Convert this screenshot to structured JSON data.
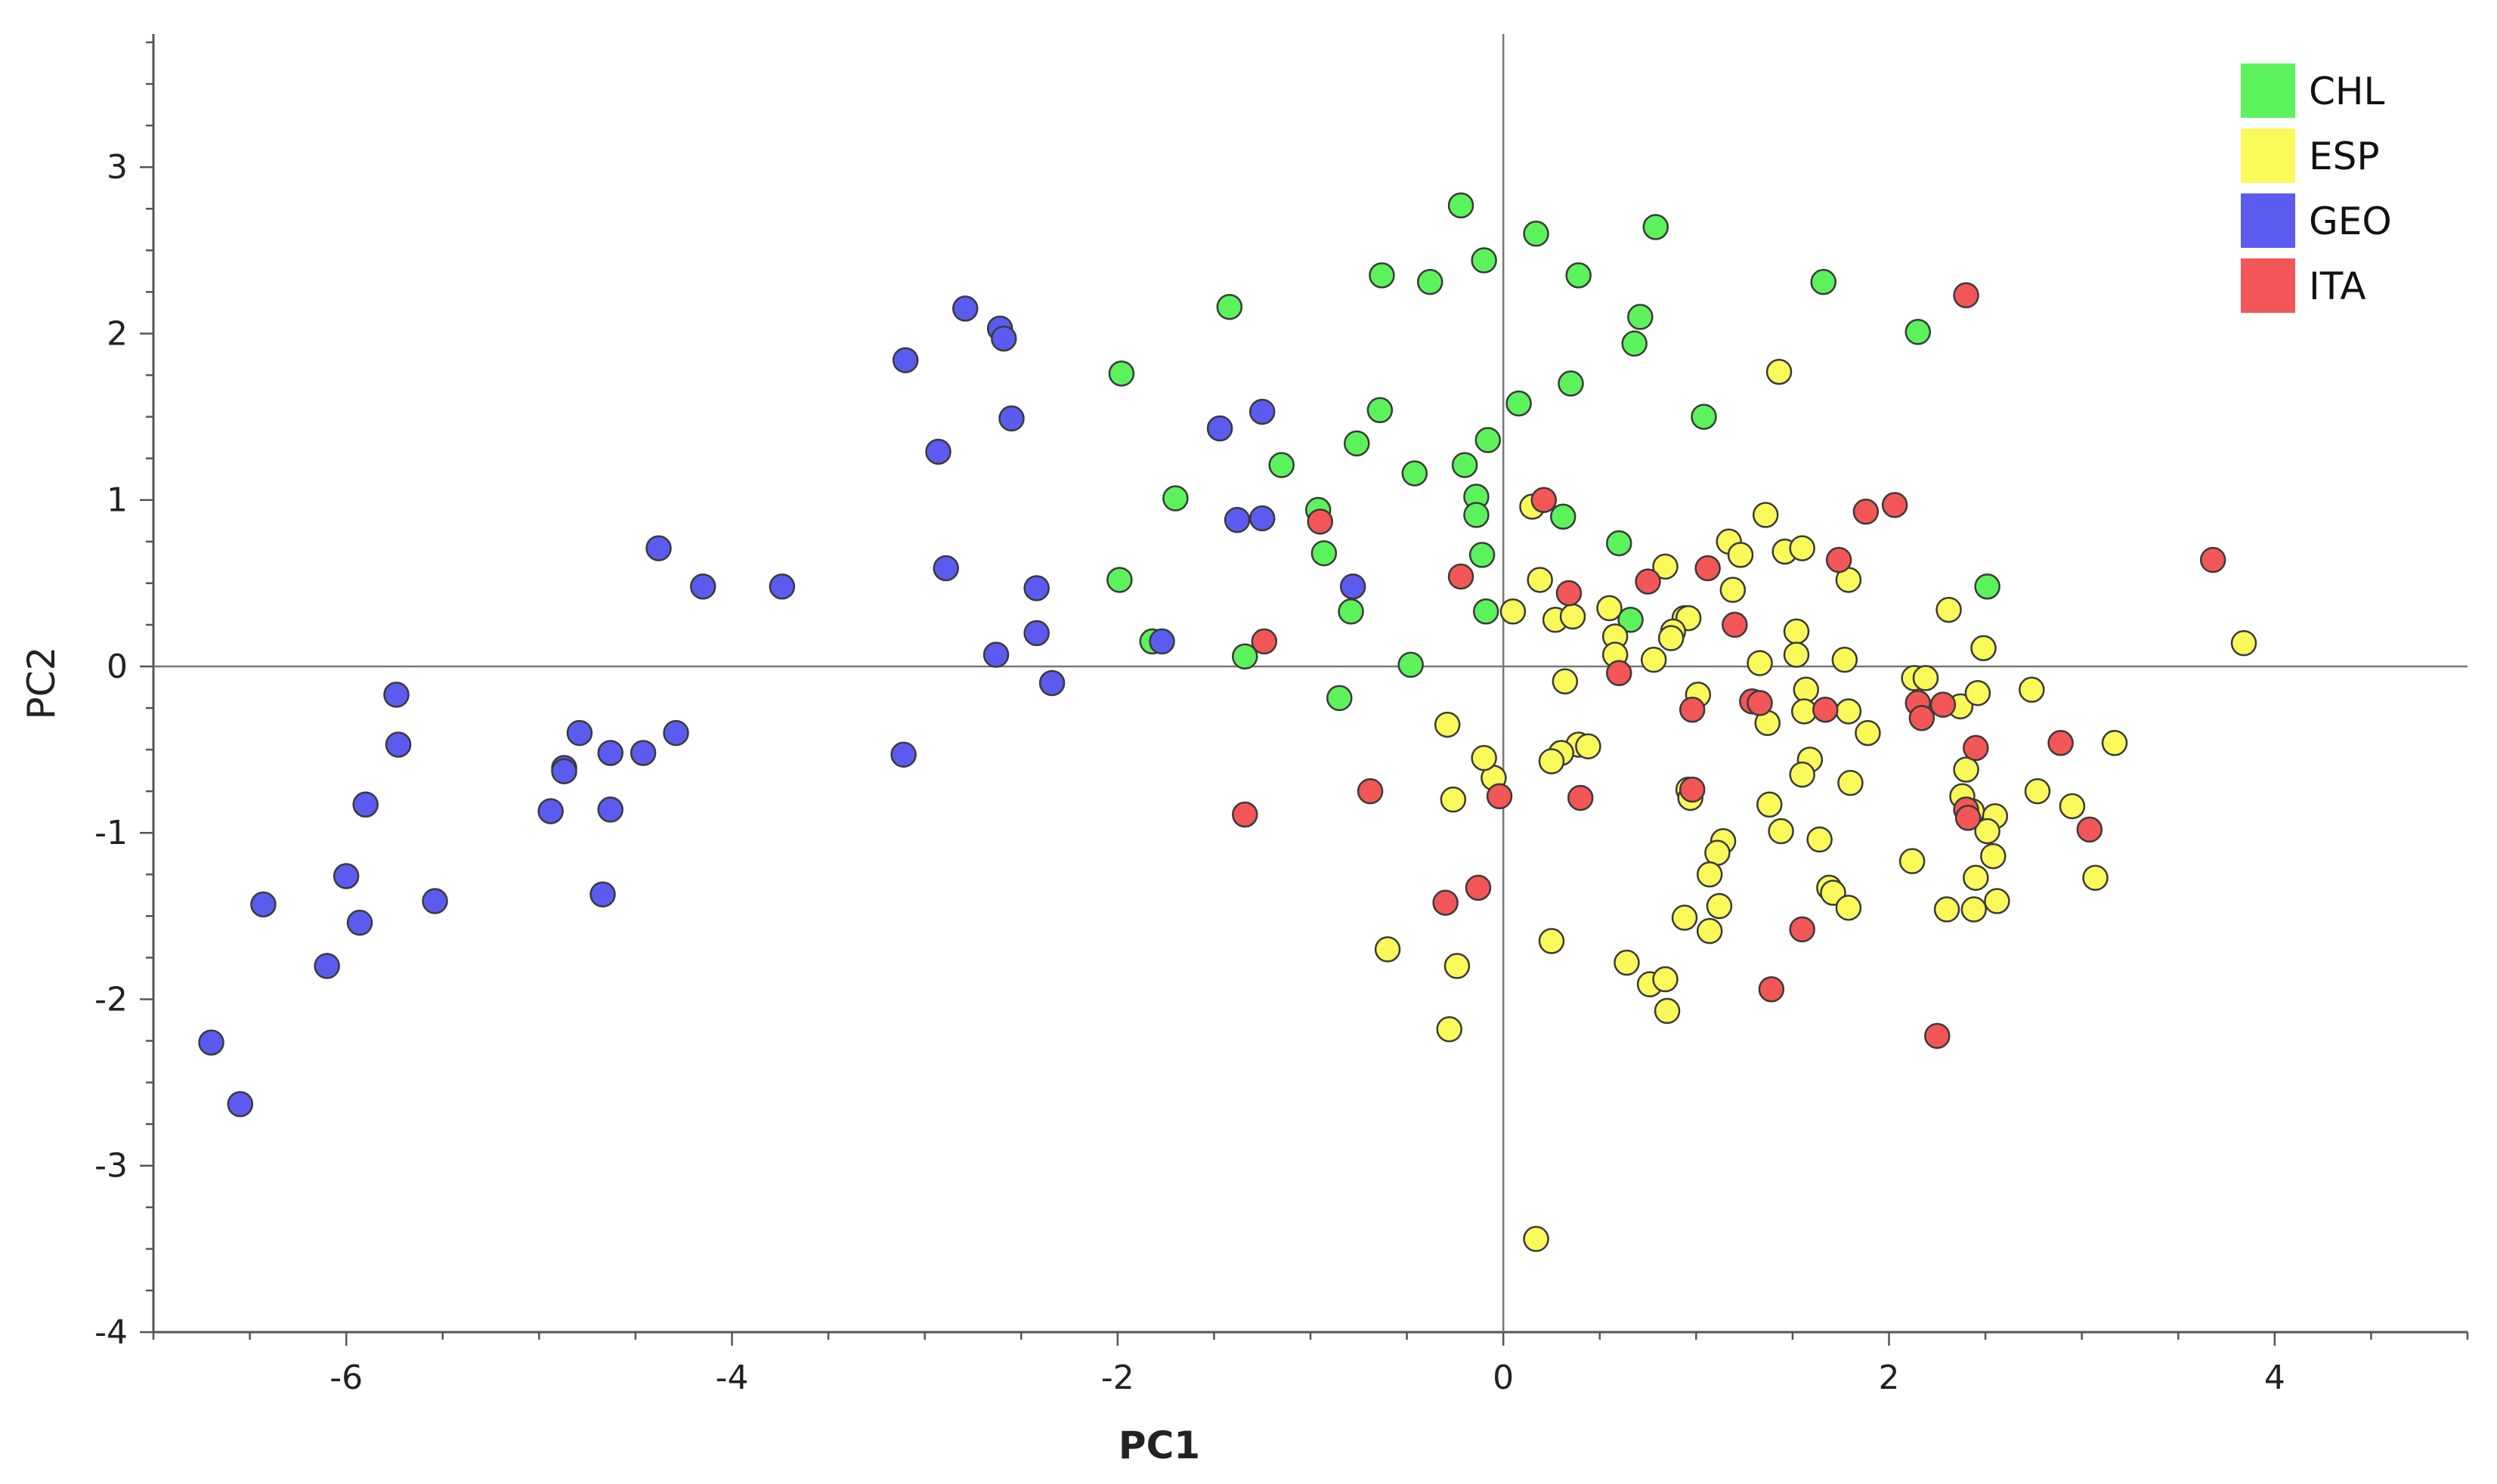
{
  "chart_data": {
    "type": "scatter",
    "title": "",
    "xlabel": "PC1",
    "ylabel": "PC2",
    "xlim": [
      -7,
      5
    ],
    "ylim": [
      -4,
      3.8
    ],
    "xticks": [
      -6,
      -4,
      -2,
      0,
      2,
      4
    ],
    "yticks": [
      -4,
      -3,
      -2,
      -1,
      0,
      1,
      2,
      3
    ],
    "zero_lines": true,
    "grid": false,
    "legend_position": "top-right",
    "series": [
      {
        "name": "CHL",
        "color": "#5cf25c",
        "points": [
          [
            -0.22,
            2.77
          ],
          [
            -0.1,
            2.44
          ],
          [
            0.17,
            2.6
          ],
          [
            0.79,
            2.64
          ],
          [
            -0.63,
            2.35
          ],
          [
            -0.38,
            2.31
          ],
          [
            0.39,
            2.35
          ],
          [
            1.66,
            2.31
          ],
          [
            -1.42,
            2.16
          ],
          [
            0.71,
            2.1
          ],
          [
            0.68,
            1.94
          ],
          [
            2.15,
            2.01
          ],
          [
            -1.98,
            1.76
          ],
          [
            0.35,
            1.7
          ],
          [
            0.08,
            1.58
          ],
          [
            -0.64,
            1.54
          ],
          [
            1.04,
            1.5
          ],
          [
            -0.08,
            1.36
          ],
          [
            -0.76,
            1.34
          ],
          [
            -1.15,
            1.21
          ],
          [
            -0.46,
            1.16
          ],
          [
            -0.2,
            1.21
          ],
          [
            -0.14,
            1.02
          ],
          [
            -1.7,
            1.01
          ],
          [
            -0.96,
            0.94
          ],
          [
            -0.14,
            0.91
          ],
          [
            0.31,
            0.9
          ],
          [
            -0.93,
            0.68
          ],
          [
            -0.11,
            0.67
          ],
          [
            0.6,
            0.74
          ],
          [
            -1.99,
            0.52
          ],
          [
            2.51,
            0.48
          ],
          [
            -0.79,
            0.33
          ],
          [
            -0.09,
            0.33
          ],
          [
            0.66,
            0.28
          ],
          [
            -1.82,
            0.15
          ],
          [
            -1.34,
            0.06
          ],
          [
            -0.48,
            0.01
          ],
          [
            -0.85,
            -0.19
          ]
        ]
      },
      {
        "name": "ESP",
        "color": "#f9f95a",
        "points": [
          [
            1.43,
            1.77
          ],
          [
            1.36,
            0.91
          ],
          [
            0.15,
            0.96
          ],
          [
            1.17,
            0.75
          ],
          [
            1.23,
            0.67
          ],
          [
            1.46,
            0.69
          ],
          [
            1.55,
            0.71
          ],
          [
            0.84,
            0.6
          ],
          [
            0.19,
            0.52
          ],
          [
            1.19,
            0.46
          ],
          [
            1.79,
            0.52
          ],
          [
            0.05,
            0.33
          ],
          [
            0.27,
            0.28
          ],
          [
            0.36,
            0.3
          ],
          [
            0.55,
            0.35
          ],
          [
            0.58,
            0.18
          ],
          [
            0.94,
            0.29
          ],
          [
            0.96,
            0.29
          ],
          [
            0.88,
            0.21
          ],
          [
            0.87,
            0.17
          ],
          [
            0.78,
            0.04
          ],
          [
            0.58,
            0.07
          ],
          [
            1.52,
            0.21
          ],
          [
            1.52,
            0.07
          ],
          [
            1.33,
            0.02
          ],
          [
            1.77,
            0.04
          ],
          [
            2.31,
            0.34
          ],
          [
            2.49,
            0.11
          ],
          [
            3.84,
            0.14
          ],
          [
            0.32,
            -0.09
          ],
          [
            1.01,
            -0.17
          ],
          [
            1.57,
            -0.14
          ],
          [
            1.56,
            -0.27
          ],
          [
            1.37,
            -0.34
          ],
          [
            1.79,
            -0.27
          ],
          [
            1.89,
            -0.4
          ],
          [
            2.13,
            -0.07
          ],
          [
            2.19,
            -0.07
          ],
          [
            2.37,
            -0.24
          ],
          [
            2.46,
            -0.16
          ],
          [
            2.74,
            -0.14
          ],
          [
            3.17,
            -0.46
          ],
          [
            -0.29,
            -0.35
          ],
          [
            0.39,
            -0.47
          ],
          [
            0.44,
            -0.48
          ],
          [
            -0.05,
            -0.67
          ],
          [
            0.3,
            -0.52
          ],
          [
            0.25,
            -0.57
          ],
          [
            -0.1,
            -0.55
          ],
          [
            -0.26,
            -0.8
          ],
          [
            1.59,
            -0.56
          ],
          [
            1.55,
            -0.65
          ],
          [
            1.8,
            -0.7
          ],
          [
            0.96,
            -0.74
          ],
          [
            0.97,
            -0.79
          ],
          [
            1.38,
            -0.83
          ],
          [
            1.44,
            -0.99
          ],
          [
            2.4,
            -0.62
          ],
          [
            2.38,
            -0.78
          ],
          [
            2.43,
            -0.87
          ],
          [
            2.55,
            -0.9
          ],
          [
            2.51,
            -0.99
          ],
          [
            2.77,
            -0.75
          ],
          [
            2.95,
            -0.84
          ],
          [
            1.14,
            -1.05
          ],
          [
            1.11,
            -1.12
          ],
          [
            1.07,
            -1.25
          ],
          [
            1.64,
            -1.04
          ],
          [
            2.12,
            -1.17
          ],
          [
            2.54,
            -1.14
          ],
          [
            2.45,
            -1.27
          ],
          [
            3.07,
            -1.27
          ],
          [
            1.69,
            -1.33
          ],
          [
            1.71,
            -1.36
          ],
          [
            1.79,
            -1.45
          ],
          [
            2.3,
            -1.46
          ],
          [
            2.44,
            -1.46
          ],
          [
            2.56,
            -1.41
          ],
          [
            0.94,
            -1.51
          ],
          [
            1.12,
            -1.44
          ],
          [
            1.07,
            -1.59
          ],
          [
            0.25,
            -1.65
          ],
          [
            -0.6,
            -1.7
          ],
          [
            0.64,
            -1.78
          ],
          [
            -0.24,
            -1.8
          ],
          [
            0.76,
            -1.91
          ],
          [
            0.84,
            -1.88
          ],
          [
            0.85,
            -2.07
          ],
          [
            -0.28,
            -2.18
          ],
          [
            0.17,
            -3.44
          ]
        ]
      },
      {
        "name": "GEO",
        "color": "#5b5bf0",
        "points": [
          [
            -2.79,
            2.15
          ],
          [
            -2.61,
            2.03
          ],
          [
            -2.59,
            1.97
          ],
          [
            -3.1,
            1.84
          ],
          [
            -2.55,
            1.49
          ],
          [
            -1.47,
            1.43
          ],
          [
            -1.25,
            1.53
          ],
          [
            -2.93,
            1.29
          ],
          [
            -1.38,
            0.88
          ],
          [
            -1.25,
            0.89
          ],
          [
            -4.38,
            0.71
          ],
          [
            -4.15,
            0.48
          ],
          [
            -3.74,
            0.48
          ],
          [
            -2.89,
            0.59
          ],
          [
            -2.42,
            0.47
          ],
          [
            -0.78,
            0.48
          ],
          [
            -2.42,
            0.2
          ],
          [
            -2.63,
            0.07
          ],
          [
            -1.77,
            0.15
          ],
          [
            -2.34,
            -0.1
          ],
          [
            -5.74,
            -0.17
          ],
          [
            -5.73,
            -0.47
          ],
          [
            -4.79,
            -0.4
          ],
          [
            -4.29,
            -0.4
          ],
          [
            -4.63,
            -0.52
          ],
          [
            -4.46,
            -0.52
          ],
          [
            -3.11,
            -0.53
          ],
          [
            -4.87,
            -0.61
          ],
          [
            -4.87,
            -0.63
          ],
          [
            -5.9,
            -0.83
          ],
          [
            -4.94,
            -0.87
          ],
          [
            -4.63,
            -0.86
          ],
          [
            -6.0,
            -1.26
          ],
          [
            -6.43,
            -1.43
          ],
          [
            -5.54,
            -1.41
          ],
          [
            -4.67,
            -1.37
          ],
          [
            -5.93,
            -1.54
          ],
          [
            -6.1,
            -1.8
          ],
          [
            -6.7,
            -2.26
          ],
          [
            -6.55,
            -2.63
          ]
        ]
      },
      {
        "name": "ITA",
        "color": "#f25656",
        "points": [
          [
            2.4,
            2.23
          ],
          [
            0.21,
            1.0
          ],
          [
            1.88,
            0.93
          ],
          [
            2.03,
            0.97
          ],
          [
            -0.95,
            0.87
          ],
          [
            1.06,
            0.59
          ],
          [
            1.74,
            0.64
          ],
          [
            3.68,
            0.64
          ],
          [
            -0.22,
            0.54
          ],
          [
            0.75,
            0.51
          ],
          [
            0.34,
            0.44
          ],
          [
            1.2,
            0.25
          ],
          [
            -1.24,
            0.15
          ],
          [
            0.6,
            -0.04
          ],
          [
            1.29,
            -0.21
          ],
          [
            1.33,
            -0.22
          ],
          [
            1.67,
            -0.26
          ],
          [
            0.98,
            -0.26
          ],
          [
            2.15,
            -0.22
          ],
          [
            2.28,
            -0.23
          ],
          [
            2.17,
            -0.31
          ],
          [
            2.45,
            -0.49
          ],
          [
            2.89,
            -0.46
          ],
          [
            -0.69,
            -0.75
          ],
          [
            0.4,
            -0.79
          ],
          [
            -0.02,
            -0.78
          ],
          [
            0.98,
            -0.74
          ],
          [
            -1.34,
            -0.89
          ],
          [
            2.4,
            -0.86
          ],
          [
            2.41,
            -0.91
          ],
          [
            3.04,
            -0.98
          ],
          [
            -0.13,
            -1.33
          ],
          [
            -0.3,
            -1.42
          ],
          [
            1.55,
            -1.58
          ],
          [
            1.39,
            -1.94
          ],
          [
            2.25,
            -2.22
          ]
        ]
      }
    ]
  }
}
